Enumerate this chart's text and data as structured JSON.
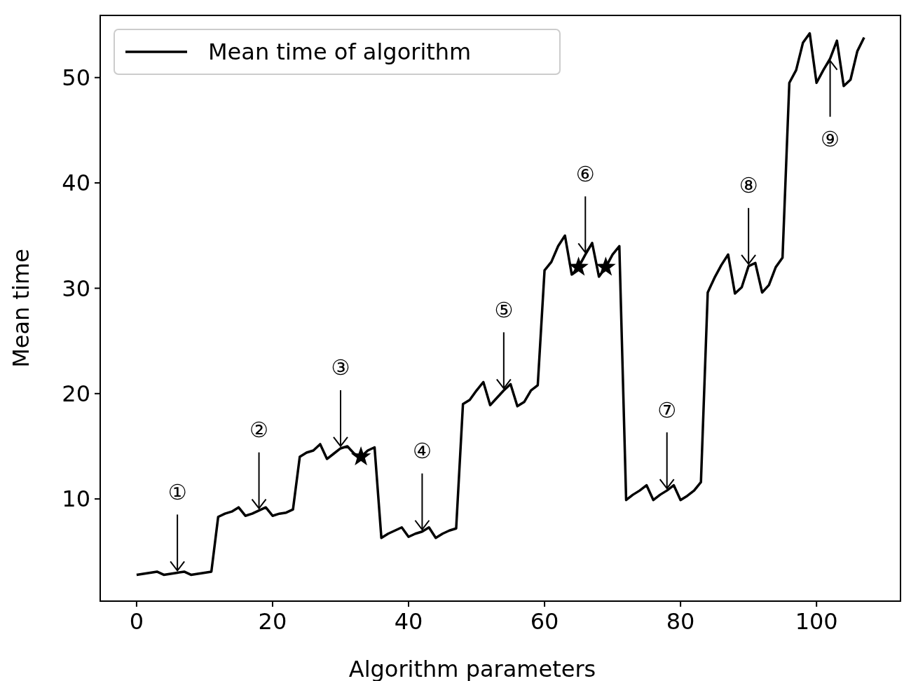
{
  "chart_data": {
    "type": "line",
    "xlabel": "Algorithm parameters",
    "ylabel": "Mean time",
    "xlim": [
      -5.35,
      112.35
    ],
    "ylim": [
      0.3,
      55.9
    ],
    "xticks": [
      0,
      20,
      40,
      60,
      80,
      100
    ],
    "yticks": [
      10,
      20,
      30,
      40,
      50
    ],
    "legend": "top left",
    "grid": false,
    "series": [
      {
        "name": "Mean time of algorithm",
        "color": "#000000",
        "marker": "none",
        "x": [
          0,
          1,
          2,
          3,
          4,
          5,
          6,
          7,
          8,
          9,
          10,
          11,
          12,
          13,
          14,
          15,
          16,
          17,
          18,
          19,
          20,
          21,
          22,
          23,
          24,
          25,
          26,
          27,
          28,
          29,
          30,
          31,
          32,
          33,
          34,
          35,
          36,
          37,
          38,
          39,
          40,
          41,
          42,
          43,
          44,
          45,
          46,
          47,
          48,
          49,
          50,
          51,
          52,
          53,
          54,
          55,
          56,
          57,
          58,
          59,
          60,
          61,
          62,
          63,
          64,
          65,
          66,
          67,
          68,
          69,
          70,
          71,
          72,
          73,
          74,
          75,
          76,
          77,
          78,
          79,
          80,
          81,
          82,
          83,
          84,
          85,
          86,
          87,
          88,
          89,
          90,
          91,
          92,
          93,
          94,
          95,
          96,
          97,
          98,
          99,
          100,
          101,
          102,
          103,
          104,
          105,
          106,
          107
        ],
        "values": [
          2.8,
          2.9,
          3.0,
          3.1,
          2.8,
          2.9,
          3.0,
          3.1,
          2.8,
          2.9,
          3.0,
          3.1,
          8.3,
          8.6,
          8.8,
          9.2,
          8.4,
          8.6,
          8.9,
          9.2,
          8.4,
          8.6,
          8.7,
          9.0,
          14.0,
          14.4,
          14.6,
          15.2,
          13.8,
          14.3,
          14.8,
          15.0,
          14.3,
          14.0,
          14.6,
          14.9,
          6.3,
          6.7,
          7.0,
          7.3,
          6.4,
          6.7,
          6.9,
          7.3,
          6.3,
          6.7,
          7.0,
          7.2,
          19.0,
          19.4,
          20.3,
          21.1,
          18.9,
          19.6,
          20.3,
          20.9,
          18.8,
          19.2,
          20.3,
          20.8,
          31.7,
          32.5,
          34.0,
          35.0,
          31.3,
          32.0,
          33.2,
          34.3,
          31.1,
          32.0,
          33.2,
          34.0,
          9.9,
          10.4,
          10.8,
          11.3,
          9.9,
          10.4,
          10.8,
          11.3,
          9.9,
          10.3,
          10.8,
          11.6,
          29.6,
          31.0,
          32.2,
          33.2,
          29.5,
          30.1,
          32.1,
          32.4,
          29.6,
          30.3,
          32.0,
          32.9,
          49.5,
          50.7,
          53.3,
          54.2,
          49.5,
          50.7,
          51.8,
          53.5,
          49.2,
          49.8,
          52.5,
          53.8
        ]
      },
      {
        "type": "scatter",
        "color": "#000000",
        "marker": "star",
        "x": [
          33,
          65,
          69
        ],
        "values": [
          14.0,
          32.0,
          32.0
        ]
      }
    ],
    "annotations": [
      {
        "text": "①",
        "x": 6,
        "y": 3.0
      },
      {
        "text": "②",
        "x": 18,
        "y": 8.9
      },
      {
        "text": "③",
        "x": 30,
        "y": 14.8
      },
      {
        "text": "④",
        "x": 42,
        "y": 6.9
      },
      {
        "text": "⑤",
        "x": 54,
        "y": 20.3
      },
      {
        "text": "⑥",
        "x": 66,
        "y": 33.2
      },
      {
        "text": "⑦",
        "x": 78,
        "y": 10.8
      },
      {
        "text": "⑧",
        "x": 90,
        "y": 32.1
      },
      {
        "text": "⑨",
        "x": 102,
        "y": 51.8
      }
    ]
  }
}
